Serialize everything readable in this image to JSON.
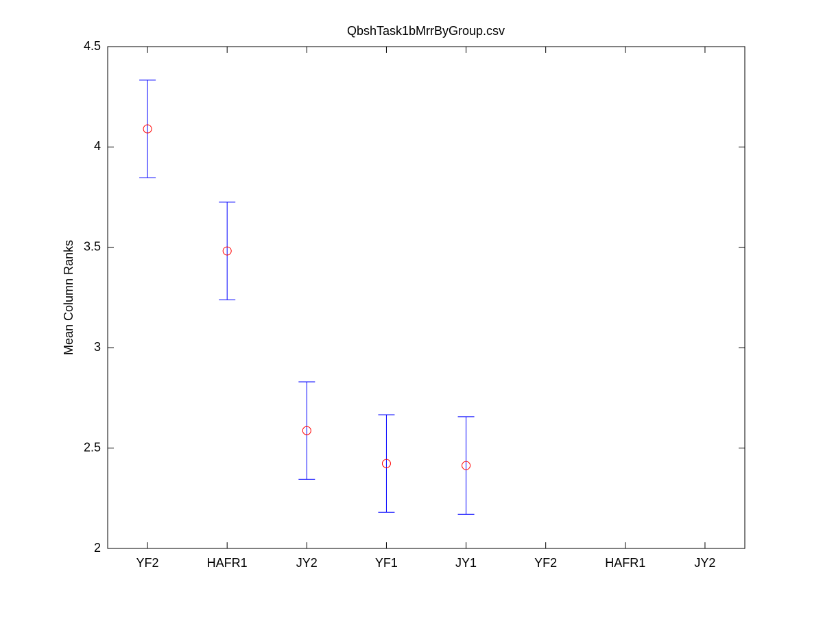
{
  "chart_data": {
    "type": "errorbar",
    "title": "QbshTask1bMrrByGroup.csv",
    "y_label": "Mean Column Ranks",
    "categories": [
      "YF2",
      "HAFR1",
      "JY2",
      "YF1",
      "JY1",
      "YF2",
      "HAFR1",
      "JY2"
    ],
    "values": [
      4.09,
      3.482,
      2.587,
      2.423,
      2.413,
      null,
      null,
      null
    ],
    "errors": [
      0.243,
      0.243,
      0.243,
      0.243,
      0.243,
      null,
      null,
      null
    ],
    "marker_color": "#ff0000",
    "errorbar_color": "#0000ff",
    "ylim": [
      2,
      4.5
    ],
    "yticks": [
      2,
      2.5,
      3,
      3.5,
      4,
      4.5
    ]
  }
}
